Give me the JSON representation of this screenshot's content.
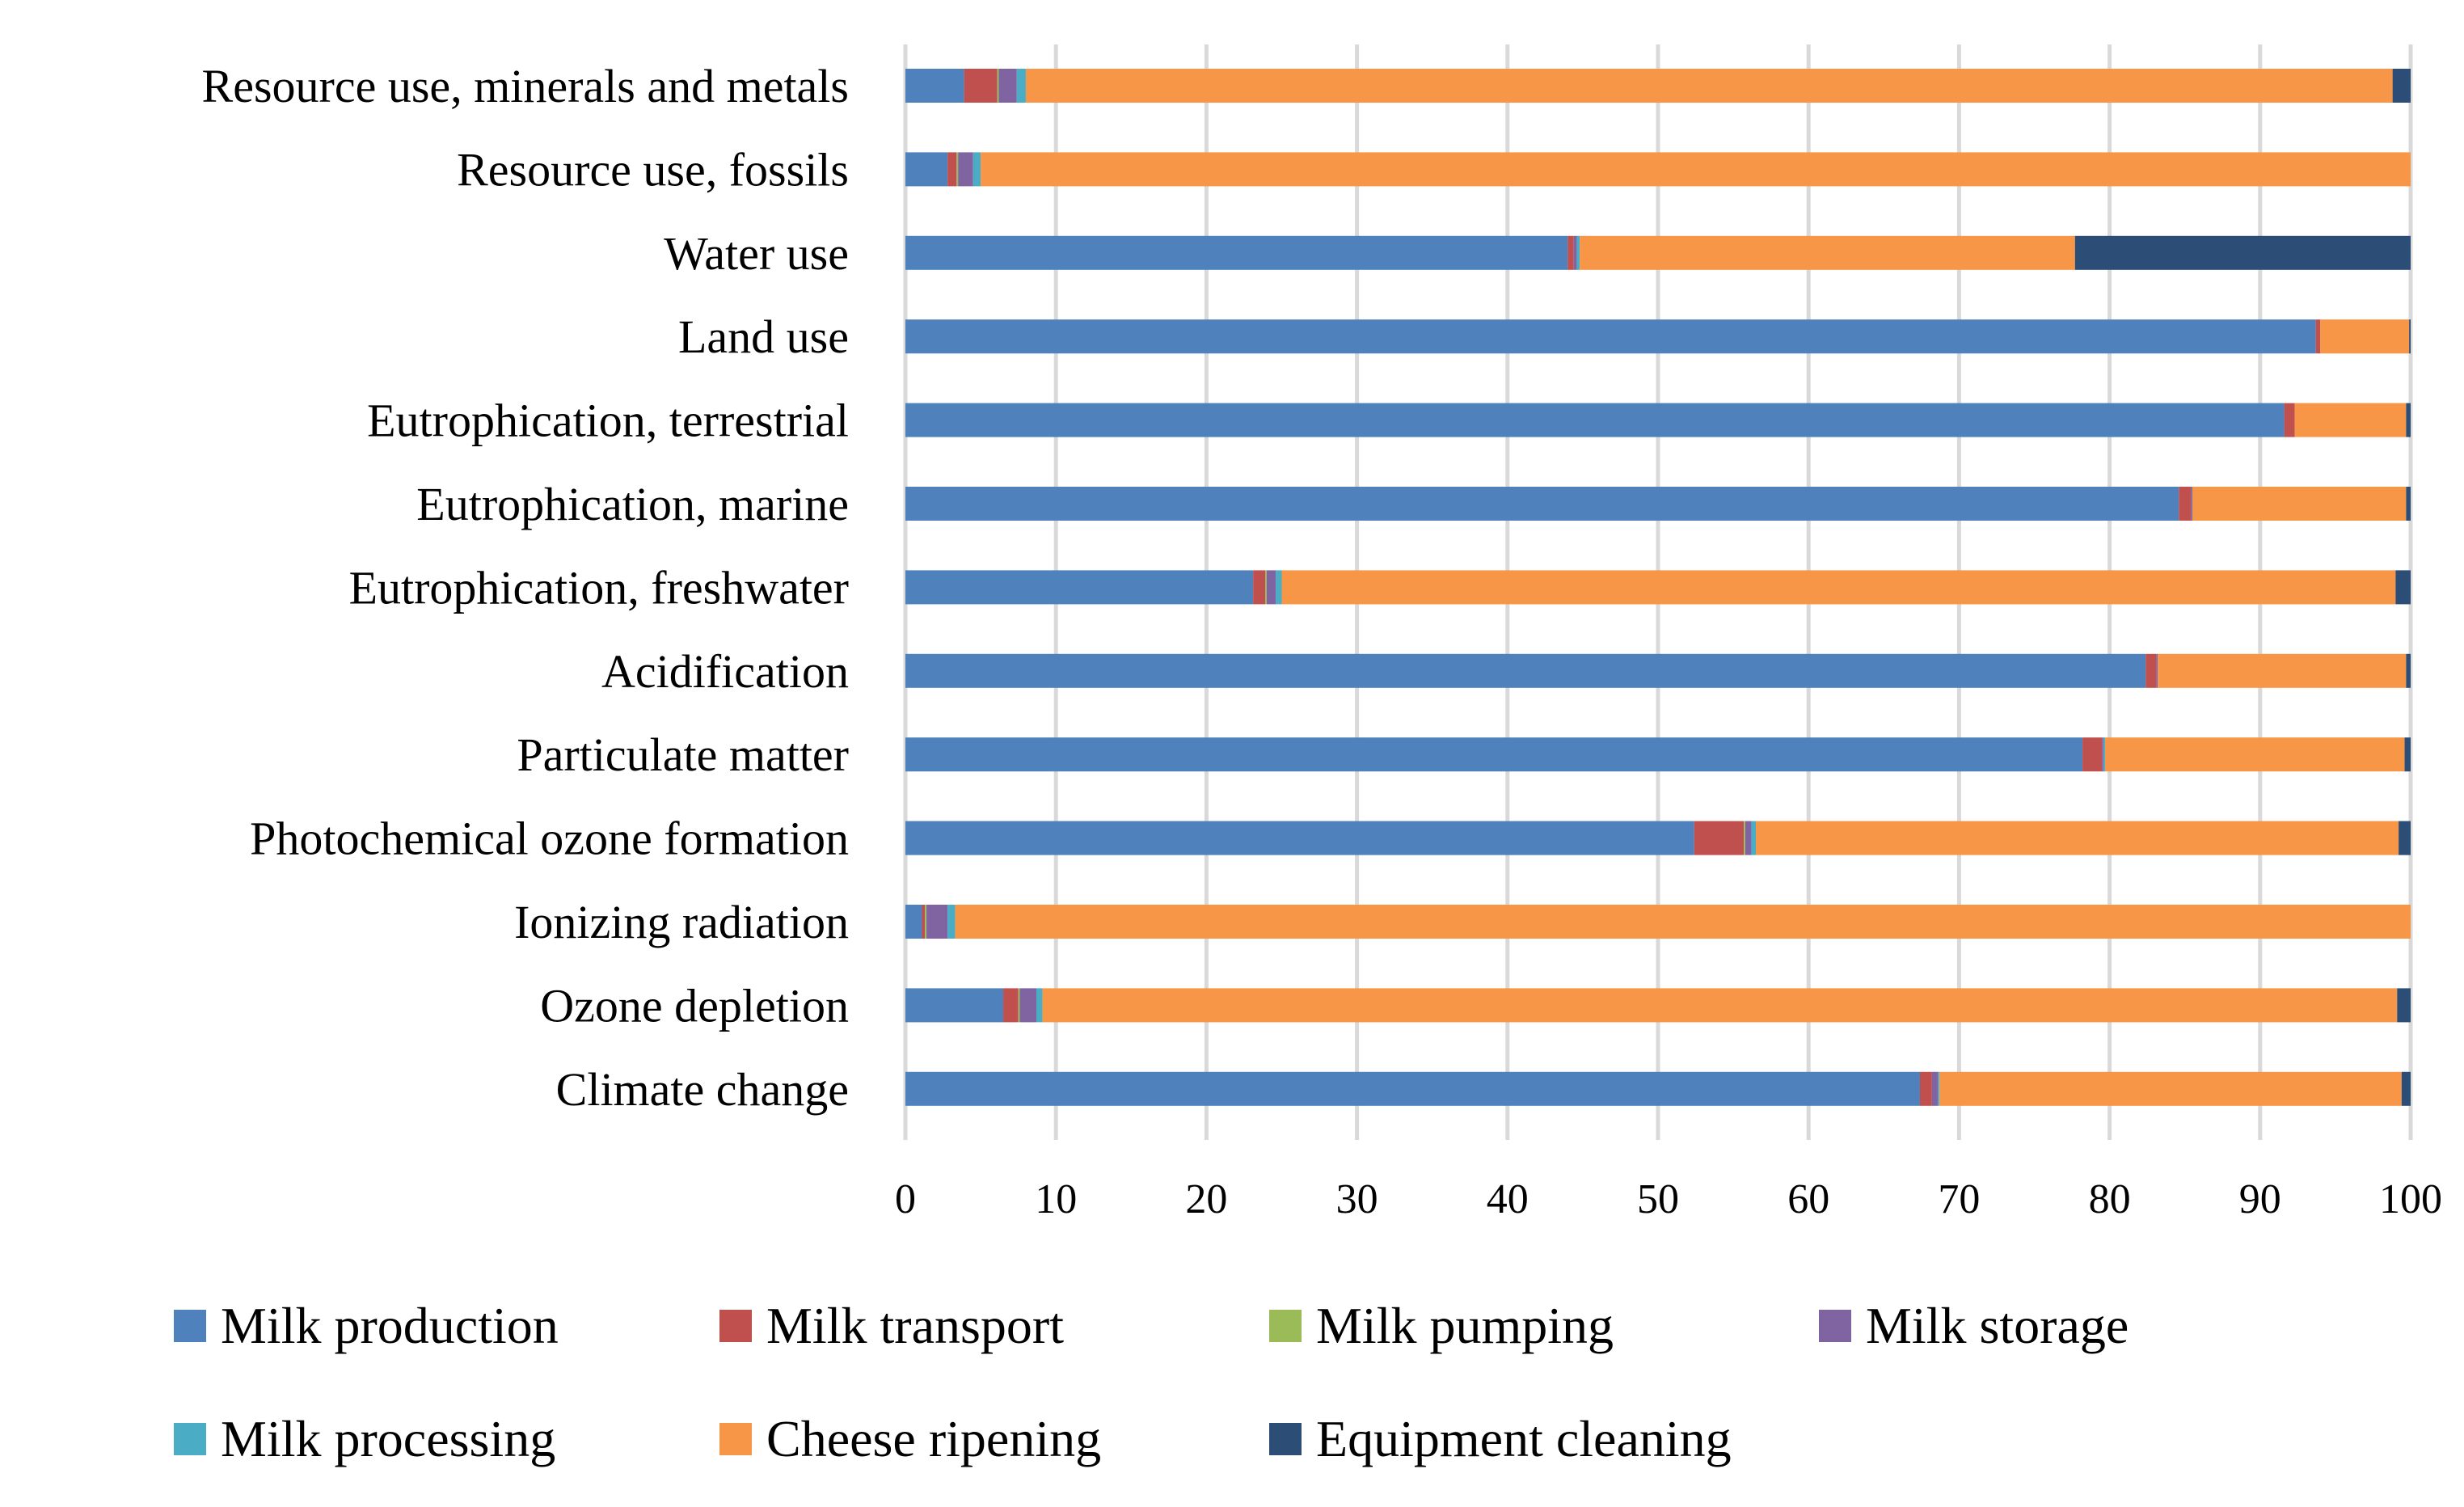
{
  "chart_data": {
    "type": "bar",
    "orientation": "horizontal",
    "stacked": true,
    "title": "",
    "xlabel": "",
    "ylabel": "",
    "xlim": [
      0,
      100
    ],
    "x_ticks": [
      "0",
      "10",
      "20",
      "30",
      "40",
      "50",
      "60",
      "70",
      "80",
      "90",
      "100"
    ],
    "grid": true,
    "legend_position": "bottom",
    "categories": [
      "Resource use, minerals and metals",
      "Resource use, fossils",
      "Water use",
      "Land use",
      "Eutrophication, terrestrial",
      "Eutrophication, marine",
      "Eutrophication, freshwater",
      "Acidification",
      "Particulate matter",
      "Photochemical ozone formation",
      "Ionizing radiation",
      "Ozone depletion",
      "Climate change"
    ],
    "series": [
      {
        "name": "Milk production",
        "color": "#4F81BD",
        "values": [
          3.9,
          2.8,
          44.0,
          93.7,
          91.6,
          84.6,
          23.1,
          82.4,
          78.2,
          52.4,
          1.1,
          6.5,
          67.4
        ]
      },
      {
        "name": "Milk transport",
        "color": "#C0504D",
        "values": [
          2.2,
          0.6,
          0.4,
          0.3,
          0.7,
          0.8,
          0.8,
          0.7,
          1.3,
          3.3,
          0.2,
          1.0,
          0.8
        ]
      },
      {
        "name": "Milk pumping",
        "color": "#9BBB59",
        "values": [
          0.1,
          0.1,
          0.0,
          0.0,
          0.0,
          0.0,
          0.1,
          0.0,
          0.0,
          0.1,
          0.1,
          0.1,
          0.0
        ]
      },
      {
        "name": "Milk storage",
        "color": "#8064A2",
        "values": [
          1.2,
          1.0,
          0.2,
          0.0,
          0.0,
          0.1,
          0.6,
          0.1,
          0.1,
          0.4,
          1.4,
          1.1,
          0.4
        ]
      },
      {
        "name": "Milk processing",
        "color": "#4BACC6",
        "values": [
          0.6,
          0.5,
          0.2,
          0.0,
          0.0,
          0.0,
          0.4,
          0.0,
          0.1,
          0.3,
          0.5,
          0.4,
          0.1
        ]
      },
      {
        "name": "Cheese ripening",
        "color": "#F79646",
        "values": [
          90.8,
          95.0,
          32.9,
          5.9,
          7.4,
          14.2,
          74.0,
          16.5,
          19.9,
          42.7,
          96.7,
          90.0,
          30.7
        ]
      },
      {
        "name": "Equipment cleaning",
        "color": "#2C4D75",
        "values": [
          1.2,
          0.0,
          22.3,
          0.1,
          0.3,
          0.3,
          1.0,
          0.3,
          0.4,
          0.8,
          0.0,
          0.9,
          0.6
        ]
      }
    ]
  }
}
